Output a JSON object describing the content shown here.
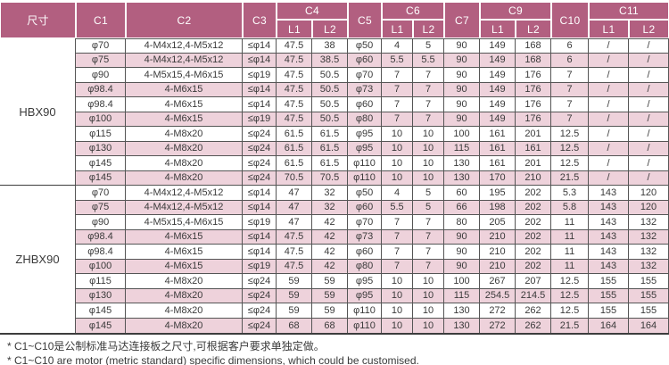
{
  "colors": {
    "header_bg": "#b25f80",
    "header_text": "#ffffff",
    "row_pink": "#eed2db",
    "line": "#555555",
    "line_heavy": "#3d3d3d",
    "text": "#3a3a3a"
  },
  "table": {
    "size_header": "尺寸",
    "column_groups": [
      {
        "label": "C1"
      },
      {
        "label": "C2"
      },
      {
        "label": "C3"
      },
      {
        "label": "C4",
        "sub": [
          "L1",
          "L2"
        ]
      },
      {
        "label": "C5"
      },
      {
        "label": "C6",
        "sub": [
          "L1",
          "L2"
        ]
      },
      {
        "label": "C7"
      },
      {
        "label": "C9",
        "sub": [
          "L1",
          "L2"
        ]
      },
      {
        "label": "C10"
      },
      {
        "label": "C11",
        "sub": [
          "L1",
          "L2"
        ]
      }
    ],
    "sections": [
      {
        "model": "HBX90",
        "rows": [
          [
            "φ70",
            "4-M4x12,4-M5x12",
            "≤φ14",
            "47.5",
            "38",
            "φ50",
            "4",
            "5",
            "90",
            "149",
            "168",
            "6",
            "/",
            "/"
          ],
          [
            "φ75",
            "4-M4x12,4-M5x12",
            "≤φ14",
            "47.5",
            "38.5",
            "φ60",
            "5.5",
            "5.5",
            "90",
            "149",
            "168",
            "6",
            "/",
            "/"
          ],
          [
            "φ90",
            "4-M5x15,4-M6x15",
            "≤φ19",
            "47.5",
            "50.5",
            "φ70",
            "7",
            "7",
            "90",
            "149",
            "176",
            "7",
            "/",
            "/"
          ],
          [
            "φ98.4",
            "4-M6x15",
            "≤φ14",
            "47.5",
            "50.5",
            "φ73",
            "7",
            "7",
            "90",
            "149",
            "176",
            "7",
            "/",
            "/"
          ],
          [
            "φ98.4",
            "4-M6x15",
            "≤φ14",
            "47.5",
            "50.5",
            "φ60",
            "7",
            "7",
            "90",
            "149",
            "176",
            "7",
            "/",
            "/"
          ],
          [
            "φ100",
            "4-M6x15",
            "≤φ19",
            "47.5",
            "50.5",
            "φ80",
            "7",
            "7",
            "90",
            "149",
            "176",
            "7",
            "/",
            "/"
          ],
          [
            "φ115",
            "4-M8x20",
            "≤φ24",
            "61.5",
            "61.5",
            "φ95",
            "10",
            "10",
            "100",
            "161",
            "201",
            "12.5",
            "/",
            "/"
          ],
          [
            "φ130",
            "4-M8x20",
            "≤φ24",
            "61.5",
            "61.5",
            "φ95",
            "10",
            "10",
            "115",
            "161",
            "161",
            "12.5",
            "/",
            "/"
          ],
          [
            "φ145",
            "4-M8x20",
            "≤φ24",
            "61.5",
            "61.5",
            "φ110",
            "10",
            "10",
            "130",
            "161",
            "201",
            "12.5",
            "/",
            "/"
          ],
          [
            "φ145",
            "4-M8x20",
            "≤φ24",
            "70.5",
            "70.5",
            "φ110",
            "10",
            "10",
            "130",
            "170",
            "210",
            "21.5",
            "/",
            "/"
          ]
        ]
      },
      {
        "model": "ZHBX90",
        "rows": [
          [
            "φ70",
            "4-M4x12,4-M5x12",
            "≤φ14",
            "47",
            "32",
            "φ50",
            "4",
            "5",
            "60",
            "195",
            "202",
            "5.3",
            "143",
            "120"
          ],
          [
            "φ75",
            "4-M4x12,4-M5x12",
            "≤φ14",
            "47",
            "32",
            "φ60",
            "5.5",
            "5",
            "66",
            "198",
            "202",
            "5.8",
            "143",
            "120"
          ],
          [
            "φ90",
            "4-M5x15,4-M6x15",
            "≤φ19",
            "47",
            "42",
            "φ70",
            "7",
            "7",
            "80",
            "205",
            "202",
            "11",
            "143",
            "132"
          ],
          [
            "φ98.4",
            "4-M6x15",
            "≤φ14",
            "47.5",
            "42",
            "φ73",
            "7",
            "7",
            "90",
            "210",
            "202",
            "11",
            "143",
            "132"
          ],
          [
            "φ98.4",
            "4-M6x15",
            "≤φ14",
            "47.5",
            "42",
            "φ60",
            "7",
            "7",
            "90",
            "210",
            "202",
            "11",
            "143",
            "132"
          ],
          [
            "φ100",
            "4-M6x15",
            "≤φ19",
            "47.5",
            "42",
            "φ80",
            "7",
            "7",
            "90",
            "210",
            "202",
            "11",
            "143",
            "132"
          ],
          [
            "φ115",
            "4-M8x20",
            "≤φ24",
            "59",
            "59",
            "φ95",
            "10",
            "10",
            "100",
            "267",
            "207",
            "12.5",
            "155",
            "155"
          ],
          [
            "φ130",
            "4-M8x20",
            "≤φ24",
            "59",
            "59",
            "φ95",
            "10",
            "10",
            "115",
            "254.5",
            "214.5",
            "12.5",
            "155",
            "155"
          ],
          [
            "φ145",
            "4-M8x20",
            "≤φ24",
            "59",
            "59",
            "φ110",
            "10",
            "10",
            "130",
            "272",
            "262",
            "12.5",
            "155",
            "155"
          ],
          [
            "φ145",
            "4-M8x20",
            "≤φ24",
            "68",
            "68",
            "φ110",
            "10",
            "10",
            "130",
            "272",
            "262",
            "21.5",
            "164",
            "164"
          ]
        ]
      }
    ]
  },
  "footnotes": [
    "* C1~C10是公制标准马达连接板之尺寸,可根据客户要求单独定做。",
    "* C1~C10 are motor (metric standard) specific dimensions, which could be customised."
  ]
}
